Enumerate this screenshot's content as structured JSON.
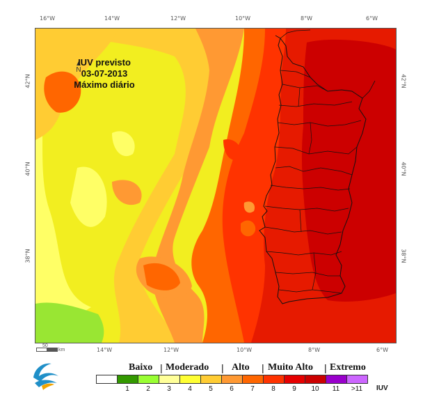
{
  "map": {
    "title_line1": "IUV previsto",
    "title_line2": "03-07-2013",
    "title_line3": "Máximo diário",
    "north_label": "N",
    "lon_ticks_top": [
      "16°W",
      "14°W",
      "12°W",
      "10°W",
      "8°W",
      "6°W"
    ],
    "lon_ticks_bottom": [
      "14°W",
      "12°W",
      "10°W",
      "8°W",
      "6°W"
    ],
    "lat_ticks_left": [
      "42°N",
      "40°N",
      "38°N"
    ],
    "lat_ticks_right": [
      "42°N",
      "40°N",
      "38°N"
    ],
    "scale_bar": {
      "value": "50",
      "unit": "km"
    }
  },
  "legend": {
    "categories": [
      {
        "label": "Baixo"
      },
      {
        "label": "Moderado"
      },
      {
        "label": "Alto"
      },
      {
        "label": "Muito Alto"
      },
      {
        "label": "Extremo"
      }
    ],
    "classes": [
      {
        "value": "",
        "color": "#ffffff"
      },
      {
        "value": "1",
        "color": "#339900"
      },
      {
        "value": "2",
        "color": "#99ff33"
      },
      {
        "value": "3",
        "color": "#ffff99"
      },
      {
        "value": "4",
        "color": "#ffff33"
      },
      {
        "value": "5",
        "color": "#ffcc33"
      },
      {
        "value": "6",
        "color": "#ff9933"
      },
      {
        "value": "7",
        "color": "#ff6600"
      },
      {
        "value": "8",
        "color": "#ff3300"
      },
      {
        "value": "9",
        "color": "#e60000"
      },
      {
        "value": "10",
        "color": "#cc0000"
      },
      {
        "value": "11",
        "color": "#9900cc"
      },
      {
        "value": ">11",
        "color": "#cc66ff"
      }
    ],
    "unit": "IUV"
  }
}
